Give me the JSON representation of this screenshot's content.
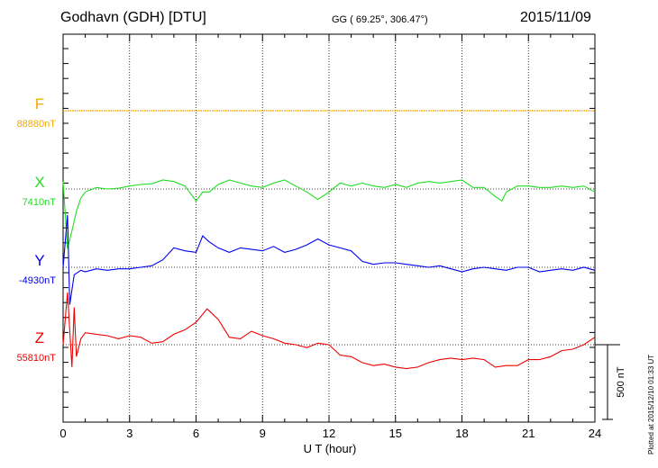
{
  "header": {
    "station": "Godhavn (GDH)  [DTU]",
    "coords": "GG ( 69.25°, 306.47°)",
    "date": "2015/11/09"
  },
  "footer_note": "Plotted at 2015/12/10 01:33 UT",
  "chart_data": {
    "type": "line",
    "xlabel": "U T (hour)",
    "xlim": [
      0,
      24
    ],
    "xticks": [
      0,
      3,
      6,
      9,
      12,
      15,
      18,
      21,
      24
    ],
    "grid": true,
    "scale_bar": {
      "label": "500 nT",
      "value_nT": 500
    },
    "series": [
      {
        "name": "F",
        "baseline_label": "88880nT",
        "color": "#f4a800",
        "points": [
          [
            0,
            0
          ],
          [
            24,
            0
          ]
        ]
      },
      {
        "name": "X",
        "baseline_label": "7410nT",
        "color": "#22dd22",
        "points": [
          [
            0,
            50
          ],
          [
            0.2,
            -400
          ],
          [
            0.4,
            -280
          ],
          [
            0.6,
            -150
          ],
          [
            0.8,
            -60
          ],
          [
            1,
            -20
          ],
          [
            1.5,
            10
          ],
          [
            2,
            0
          ],
          [
            2.5,
            5
          ],
          [
            3,
            20
          ],
          [
            3.5,
            30
          ],
          [
            4,
            35
          ],
          [
            4.5,
            60
          ],
          [
            5,
            50
          ],
          [
            5.5,
            20
          ],
          [
            6,
            -80
          ],
          [
            6.3,
            -20
          ],
          [
            6.6,
            -20
          ],
          [
            7,
            30
          ],
          [
            7.5,
            60
          ],
          [
            8,
            40
          ],
          [
            8.5,
            20
          ],
          [
            9,
            10
          ],
          [
            9.5,
            40
          ],
          [
            10,
            60
          ],
          [
            10.5,
            20
          ],
          [
            11,
            -20
          ],
          [
            11.5,
            -70
          ],
          [
            12,
            -20
          ],
          [
            12.5,
            40
          ],
          [
            13,
            20
          ],
          [
            13.5,
            40
          ],
          [
            14,
            20
          ],
          [
            14.5,
            10
          ],
          [
            15,
            30
          ],
          [
            15.5,
            10
          ],
          [
            16,
            40
          ],
          [
            16.5,
            50
          ],
          [
            17,
            40
          ],
          [
            17.5,
            50
          ],
          [
            18,
            60
          ],
          [
            18.5,
            10
          ],
          [
            19,
            10
          ],
          [
            19.5,
            -50
          ],
          [
            19.8,
            -80
          ],
          [
            20,
            -20
          ],
          [
            20.5,
            20
          ],
          [
            21,
            20
          ],
          [
            21.5,
            10
          ],
          [
            22,
            10
          ],
          [
            22.5,
            20
          ],
          [
            23,
            10
          ],
          [
            23.5,
            20
          ],
          [
            24,
            -20
          ]
        ]
      },
      {
        "name": "Y",
        "baseline_label": "-4930nT",
        "color": "#0000ee",
        "points": [
          [
            0,
            0
          ],
          [
            0.2,
            350
          ],
          [
            0.3,
            -250
          ],
          [
            0.5,
            -50
          ],
          [
            0.8,
            -20
          ],
          [
            1,
            -30
          ],
          [
            1.5,
            -10
          ],
          [
            2,
            -20
          ],
          [
            2.5,
            -10
          ],
          [
            3,
            -10
          ],
          [
            3.5,
            0
          ],
          [
            4,
            10
          ],
          [
            4.5,
            50
          ],
          [
            5,
            130
          ],
          [
            5.5,
            110
          ],
          [
            6,
            100
          ],
          [
            6.3,
            210
          ],
          [
            6.6,
            170
          ],
          [
            7,
            130
          ],
          [
            7.5,
            100
          ],
          [
            8,
            130
          ],
          [
            8.5,
            120
          ],
          [
            9,
            110
          ],
          [
            9.5,
            140
          ],
          [
            10,
            100
          ],
          [
            10.5,
            120
          ],
          [
            11,
            150
          ],
          [
            11.5,
            190
          ],
          [
            12,
            150
          ],
          [
            12.5,
            130
          ],
          [
            13,
            110
          ],
          [
            13.5,
            40
          ],
          [
            14,
            20
          ],
          [
            14.5,
            30
          ],
          [
            15,
            30
          ],
          [
            15.5,
            20
          ],
          [
            16,
            10
          ],
          [
            16.5,
            0
          ],
          [
            17,
            10
          ],
          [
            17.5,
            -10
          ],
          [
            18,
            -30
          ],
          [
            18.5,
            -10
          ],
          [
            19,
            0
          ],
          [
            19.5,
            -10
          ],
          [
            20,
            -20
          ],
          [
            20.5,
            0
          ],
          [
            21,
            0
          ],
          [
            21.5,
            -30
          ],
          [
            22,
            -20
          ],
          [
            22.5,
            -10
          ],
          [
            23,
            -20
          ],
          [
            23.5,
            0
          ],
          [
            24,
            -20
          ]
        ]
      },
      {
        "name": "Z",
        "baseline_label": "55810nT",
        "color": "#ee0000",
        "points": [
          [
            0,
            0
          ],
          [
            0.2,
            350
          ],
          [
            0.4,
            -150
          ],
          [
            0.5,
            250
          ],
          [
            0.6,
            -80
          ],
          [
            0.8,
            40
          ],
          [
            1,
            80
          ],
          [
            1.5,
            70
          ],
          [
            2,
            60
          ],
          [
            2.5,
            40
          ],
          [
            3,
            60
          ],
          [
            3.5,
            50
          ],
          [
            4,
            10
          ],
          [
            4.5,
            20
          ],
          [
            5,
            70
          ],
          [
            5.5,
            100
          ],
          [
            6,
            150
          ],
          [
            6.5,
            240
          ],
          [
            7,
            170
          ],
          [
            7.5,
            50
          ],
          [
            8,
            40
          ],
          [
            8.5,
            90
          ],
          [
            9,
            60
          ],
          [
            9.5,
            40
          ],
          [
            10,
            10
          ],
          [
            10.5,
            0
          ],
          [
            11,
            -20
          ],
          [
            11.5,
            10
          ],
          [
            12,
            0
          ],
          [
            12.5,
            -70
          ],
          [
            13,
            -80
          ],
          [
            13.5,
            -120
          ],
          [
            14,
            -140
          ],
          [
            14.5,
            -130
          ],
          [
            15,
            -150
          ],
          [
            15.5,
            -160
          ],
          [
            16,
            -150
          ],
          [
            16.5,
            -120
          ],
          [
            17,
            -100
          ],
          [
            17.5,
            -90
          ],
          [
            18,
            -100
          ],
          [
            18.5,
            -90
          ],
          [
            19,
            -100
          ],
          [
            19.5,
            -150
          ],
          [
            20,
            -140
          ],
          [
            20.5,
            -140
          ],
          [
            21,
            -100
          ],
          [
            21.5,
            -100
          ],
          [
            22,
            -80
          ],
          [
            22.5,
            -40
          ],
          [
            23,
            -30
          ],
          [
            23.5,
            0
          ],
          [
            24,
            50
          ]
        ]
      }
    ]
  }
}
